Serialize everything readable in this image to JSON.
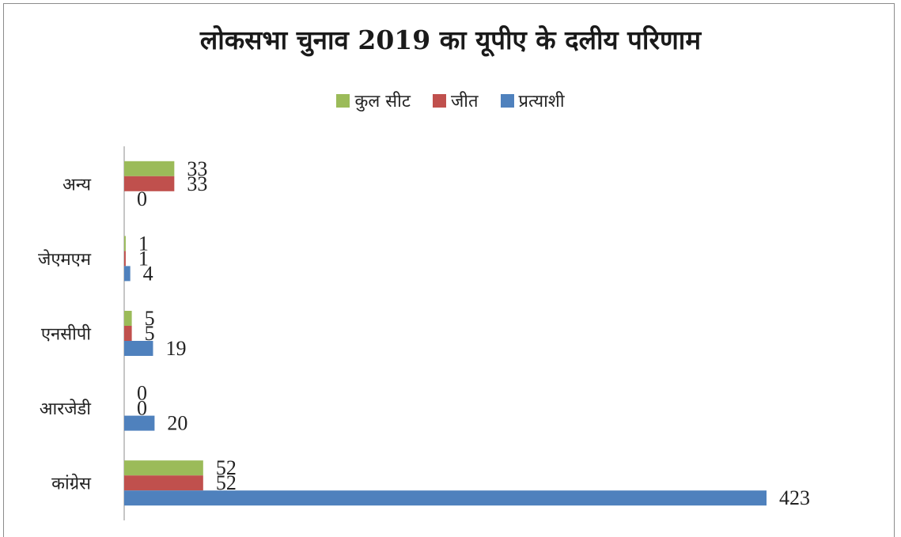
{
  "chart_data": {
    "type": "bar",
    "orientation": "horizontal",
    "title": "लोकसभा चुनाव 2019 का यूपीए के दलीय परिणाम",
    "categories": [
      "अन्य",
      "जेएमएम",
      "एनसीपी",
      "आरजेडी",
      "कांग्रेस"
    ],
    "series": [
      {
        "name": "कुल सीट",
        "color": "#9bbb59",
        "values": [
          33,
          1,
          5,
          0,
          52
        ]
      },
      {
        "name": "जीत",
        "color": "#c0504d",
        "values": [
          33,
          1,
          5,
          0,
          52
        ]
      },
      {
        "name": "प्रत्याशी",
        "color": "#4f81bd",
        "values": [
          0,
          4,
          19,
          20,
          423
        ]
      }
    ],
    "xlim": [
      0,
      423
    ],
    "legend_position": "top",
    "grid": false,
    "data_labels": true
  }
}
